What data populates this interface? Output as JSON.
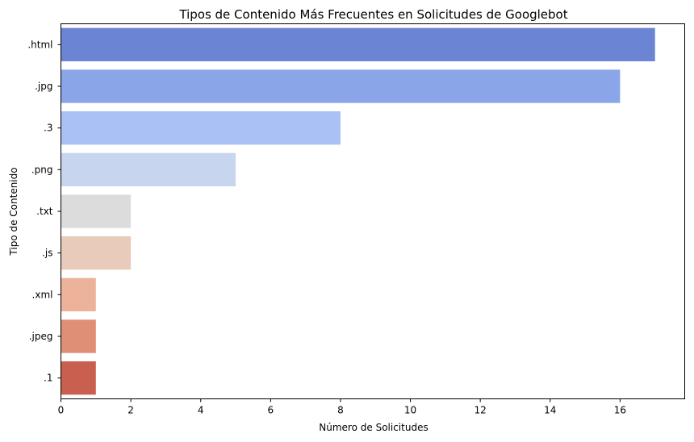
{
  "chart_data": {
    "type": "bar",
    "orientation": "horizontal",
    "title": "Tipos de Contenido Más Frecuentes en Solicitudes de Googlebot",
    "xlabel": "Número de Solicitudes",
    "ylabel": "Tipo de Contenido",
    "categories": [
      ".html",
      ".jpg",
      ".3",
      ".png",
      ".txt",
      ".js",
      ".xml",
      ".jpeg",
      ".1"
    ],
    "values": [
      17,
      16,
      8,
      5,
      2,
      2,
      1,
      1,
      1
    ],
    "colors": [
      "#6b84d3",
      "#8aa6e8",
      "#a9c1f5",
      "#c8d5ef",
      "#dcdcdc",
      "#e8cbbb",
      "#ecb39a",
      "#de8f76",
      "#c9604f"
    ],
    "xlim": [
      0,
      17.85
    ],
    "xticks": [
      0,
      2,
      4,
      6,
      8,
      10,
      12,
      14,
      16
    ],
    "grid": false,
    "legend": "none"
  }
}
